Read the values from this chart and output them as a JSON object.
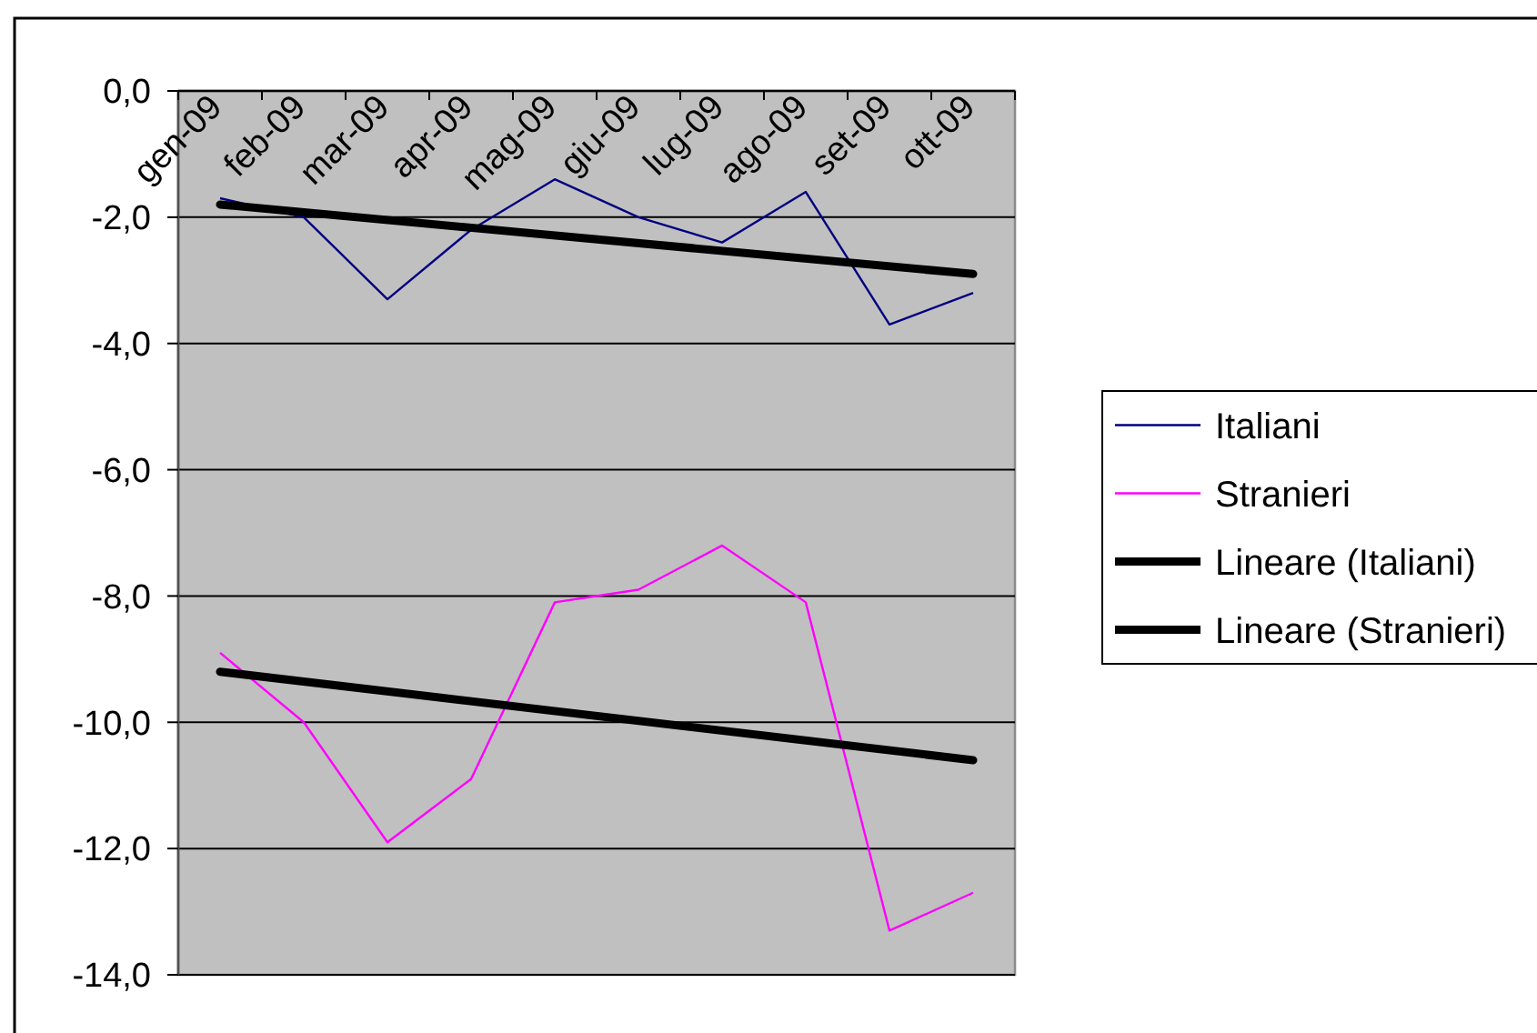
{
  "chart_data": {
    "type": "line",
    "categories": [
      "gen-09",
      "feb-09",
      "mar-09",
      "apr-09",
      "mag-09",
      "giu-09",
      "lug-09",
      "ago-09",
      "set-09",
      "ott-09"
    ],
    "series": [
      {
        "name": "Italiani",
        "color": "#000080",
        "values": [
          -1.7,
          -2.0,
          -3.3,
          -2.2,
          -1.4,
          -2.0,
          -2.4,
          -1.6,
          -3.7,
          -3.2
        ]
      },
      {
        "name": "Stranieri",
        "color": "#ff00ff",
        "values": [
          -8.9,
          -10.0,
          -11.9,
          -10.9,
          -8.1,
          -7.9,
          -7.2,
          -8.1,
          -13.3,
          -12.7
        ]
      },
      {
        "name": "Lineare (Italiani)",
        "type": "line",
        "color": "#000000",
        "x": [
          "gen-09",
          "ott-09"
        ],
        "values": [
          -1.8,
          -2.9
        ]
      },
      {
        "name": "Lineare (Stranieri)",
        "type": "line",
        "color": "#000000",
        "x": [
          "gen-09",
          "ott-09"
        ],
        "values": [
          -9.2,
          -10.6
        ]
      }
    ],
    "ylim": [
      -14,
      0
    ],
    "yticks": [
      {
        "value": 0,
        "label": "0,0"
      },
      {
        "value": -2,
        "label": "-2,0"
      },
      {
        "value": -4,
        "label": "-4,0"
      },
      {
        "value": -6,
        "label": "-6,0"
      },
      {
        "value": -8,
        "label": "-8,0"
      },
      {
        "value": -10,
        "label": "-10,0"
      },
      {
        "value": -12,
        "label": "-12,0"
      },
      {
        "value": -14,
        "label": "-14,0"
      }
    ],
    "grid": "y",
    "legend": "right"
  }
}
